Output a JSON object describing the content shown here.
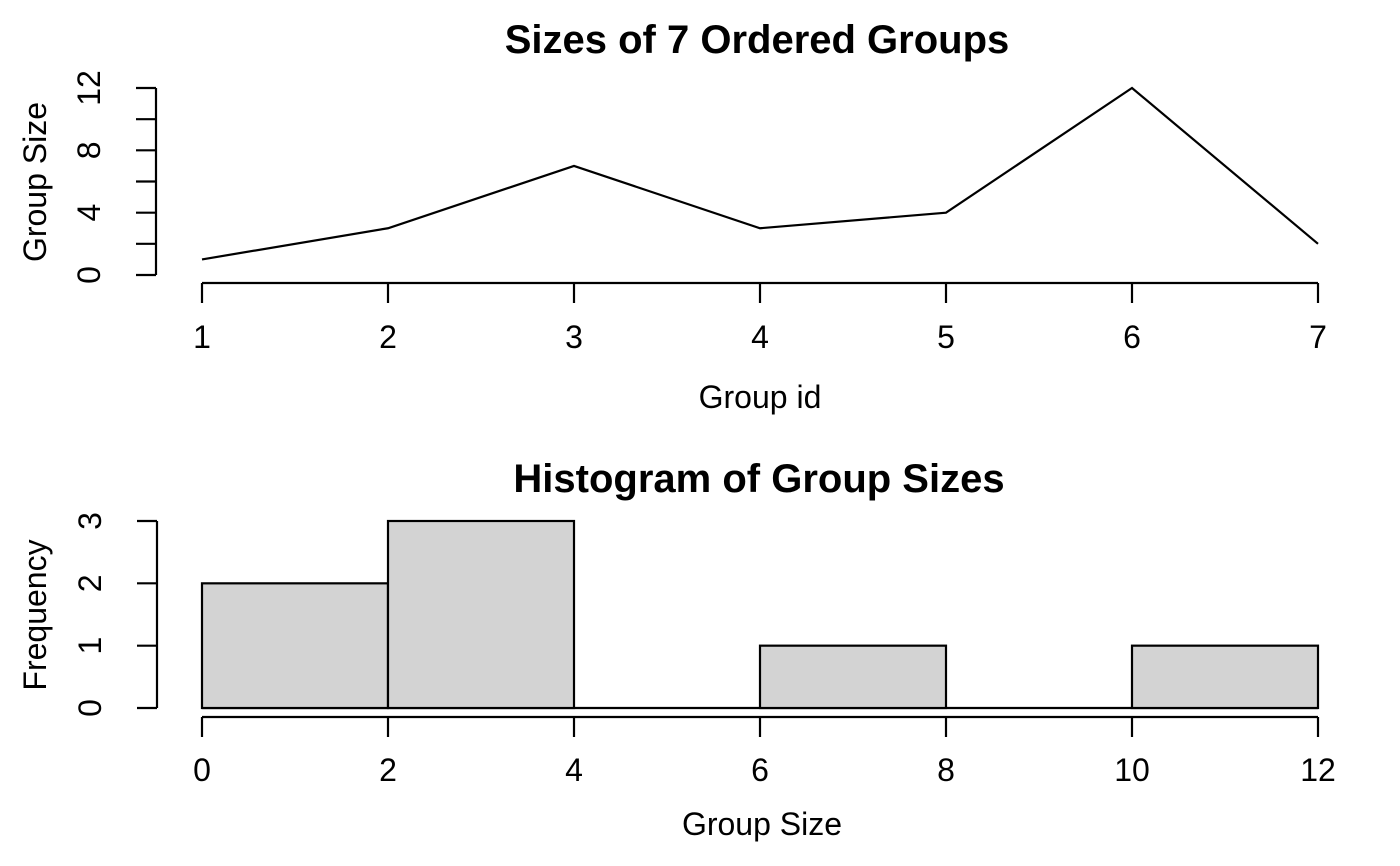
{
  "figure": {
    "background": "#ffffff",
    "foreground": "#000000",
    "bar_fill": "#d3d3d3"
  },
  "chart_data": [
    {
      "type": "line",
      "title": "Sizes of 7 Ordered Groups",
      "xlabel": "Group id",
      "ylabel": "Group Size",
      "x": [
        1,
        2,
        3,
        4,
        5,
        6,
        7
      ],
      "y": [
        1,
        3,
        7,
        3,
        4,
        12,
        2
      ],
      "xlim": [
        1,
        7
      ],
      "ylim": [
        0,
        12
      ],
      "xticks": [
        1,
        2,
        3,
        4,
        5,
        6,
        7
      ],
      "yticks": [
        0,
        2,
        4,
        6,
        8,
        10,
        12
      ],
      "ytick_labels": [
        0,
        4,
        8,
        12
      ],
      "grid": false,
      "legend": "none",
      "line_color": "#000000"
    },
    {
      "type": "bar",
      "subtype": "histogram",
      "title": "Histogram of Group Sizes",
      "xlabel": "Group Size",
      "ylabel": "Frequency",
      "bin_edges": [
        0,
        2,
        4,
        6,
        8,
        10,
        12
      ],
      "counts": [
        2,
        3,
        0,
        1,
        0,
        1
      ],
      "xlim": [
        0,
        12
      ],
      "ylim": [
        0,
        3
      ],
      "xticks": [
        0,
        2,
        4,
        6,
        8,
        10,
        12
      ],
      "yticks": [
        0,
        1,
        2,
        3
      ],
      "ytick_labels": [
        0,
        1,
        2,
        3
      ],
      "grid": false,
      "legend": "none",
      "bar_fill": "#d3d3d3",
      "bar_stroke": "#000000"
    }
  ]
}
